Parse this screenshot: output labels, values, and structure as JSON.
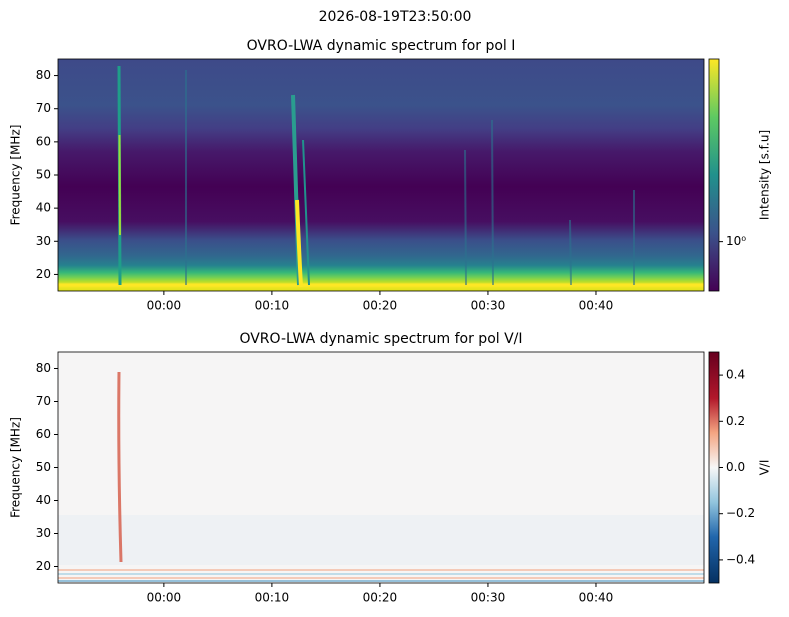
{
  "suptitle": "2026-08-19T23:50:00",
  "chart_data": [
    {
      "type": "heatmap",
      "title": "OVRO-LWA dynamic spectrum for pol I",
      "y_label": "Frequency [MHz]",
      "xlim": [
        -9.8,
        50
      ],
      "xticks": [
        {
          "value": 0,
          "label": "00:00"
        },
        {
          "value": 10,
          "label": "00:10"
        },
        {
          "value": 20,
          "label": "00:20"
        },
        {
          "value": 30,
          "label": "00:30"
        },
        {
          "value": 40,
          "label": "00:40"
        }
      ],
      "ylim": [
        15,
        85
      ],
      "yticks": [
        20,
        30,
        40,
        50,
        60,
        70,
        80
      ],
      "colormap": "viridis",
      "colorbar_label": "Intensity [s.f.u]",
      "colorbar_log": true,
      "clim": [
        0.5,
        13
      ],
      "cticks": [
        {
          "value": 1,
          "label": "10⁰"
        }
      ]
    },
    {
      "type": "heatmap",
      "title": "OVRO-LWA dynamic spectrum for pol V/I",
      "y_label": "Frequency [MHz]",
      "xlim": [
        -9.8,
        50
      ],
      "xticks": [
        {
          "value": 0,
          "label": "00:00"
        },
        {
          "value": 10,
          "label": "00:10"
        },
        {
          "value": 20,
          "label": "00:20"
        },
        {
          "value": 30,
          "label": "00:30"
        },
        {
          "value": 40,
          "label": "00:40"
        }
      ],
      "ylim": [
        15,
        85
      ],
      "yticks": [
        20,
        30,
        40,
        50,
        60,
        70,
        80
      ],
      "colormap": "RdBu_r",
      "colorbar_label": "V/I",
      "colorbar_log": false,
      "clim": [
        -0.5,
        0.5
      ],
      "cticks": [
        0.4,
        0.2,
        {
          "value": 0,
          "label": "0.0"
        },
        {
          "value": -0.2,
          "label": "−0.2"
        },
        {
          "value": -0.4,
          "label": "−0.4"
        }
      ]
    }
  ]
}
